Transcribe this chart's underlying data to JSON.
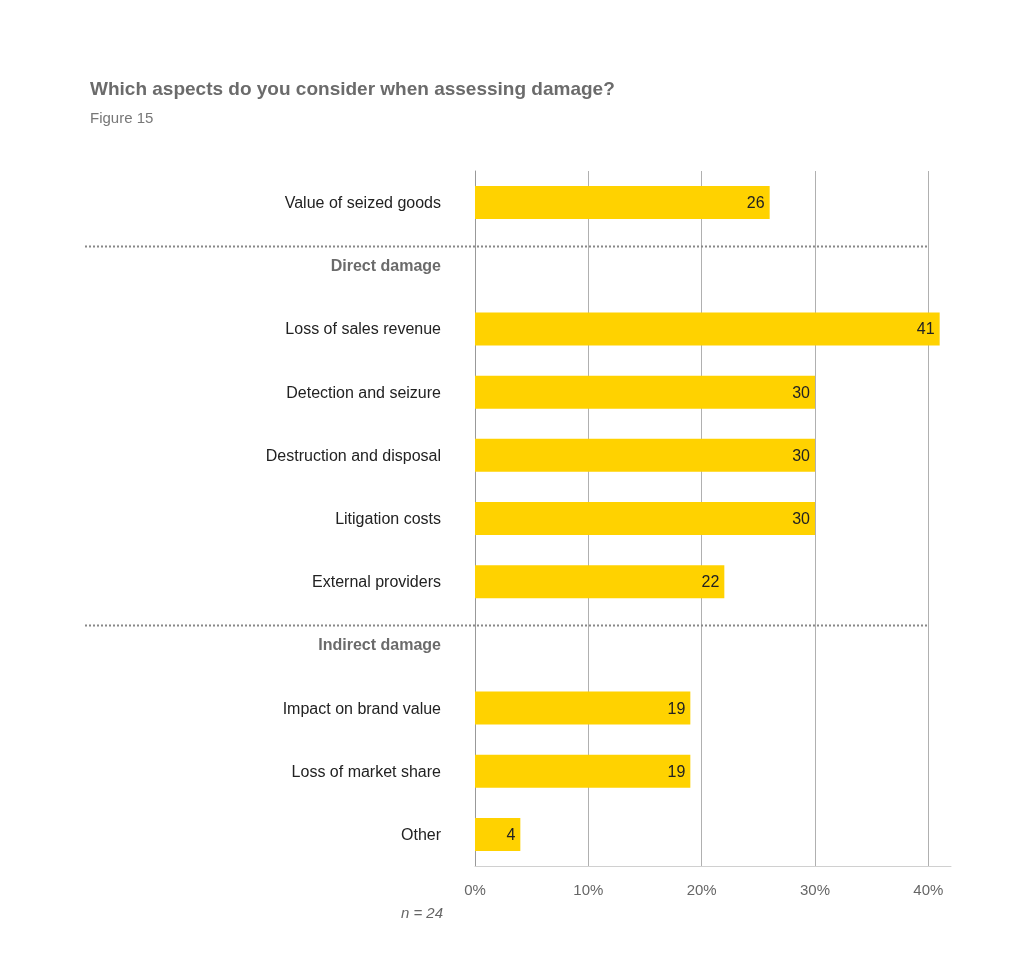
{
  "chart_data": {
    "type": "bar",
    "orientation": "horizontal",
    "title": "Which aspects do you consider when assessing damage?",
    "subtitle": "Figure 15",
    "categories": [
      "Value of seized goods",
      "Direct damage",
      "Loss of sales revenue",
      "Detection and seizure",
      "Destruction and disposal",
      "Litigation costs",
      "External providers",
      "Indirect damage",
      "Impact on brand value",
      "Loss of market share",
      "Other"
    ],
    "values": [
      26,
      null,
      41,
      30,
      30,
      30,
      22,
      null,
      19,
      19,
      4
    ],
    "color": "#ffd200",
    "data_labels": true,
    "grid": "x",
    "xlim": [
      0,
      42
    ],
    "xticks": [
      {
        "value": 0,
        "label": "0%"
      },
      {
        "value": 10,
        "label": "10%"
      },
      {
        "value": 20,
        "label": "20%"
      },
      {
        "value": 30,
        "label": "30%"
      },
      {
        "value": 40,
        "label": "40%"
      }
    ],
    "ref_lines": [
      {
        "axis": "y",
        "value": "Direct damage",
        "color": "#888888",
        "line_style": "dotted"
      },
      {
        "axis": "y",
        "value": "Indirect damage",
        "color": "#888888",
        "line_style": "dotted"
      }
    ],
    "annotations": [
      "n = 24"
    ]
  }
}
